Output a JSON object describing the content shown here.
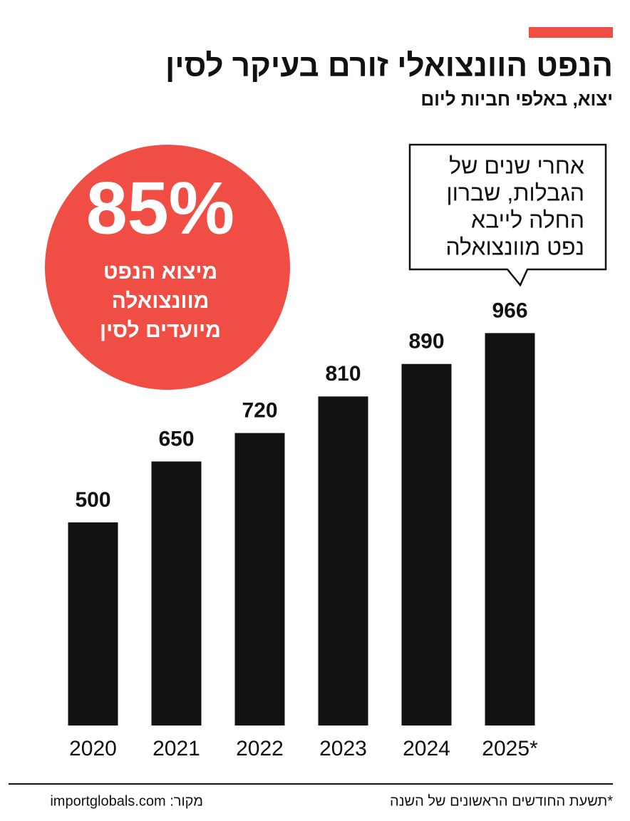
{
  "chart_data": {
    "type": "bar",
    "title": "הנפט הוונצואלי זורם בעיקר לסין",
    "subtitle": "יצוא, באלפי חביות ליום",
    "categories": [
      "2020",
      "2021",
      "2022",
      "2023",
      "2024",
      "2025*"
    ],
    "values": [
      500,
      650,
      720,
      810,
      890,
      966
    ],
    "color": "#111111",
    "highlight": {
      "value": {
        "value": 85,
        "label": "85%"
      },
      "lines": [
        "מיצוא הנפט",
        "מוונצואלה",
        "מיועדים לסין"
      ],
      "color": "#f04e44"
    },
    "note": [
      "אחרי שנים של",
      "הגבלות, שברון",
      "החלה לייבא",
      "נפט מוונצואלה"
    ],
    "footnote": "*תשעת החודשים הראשונים של השנה",
    "source": "מקור: importglobals.com"
  }
}
